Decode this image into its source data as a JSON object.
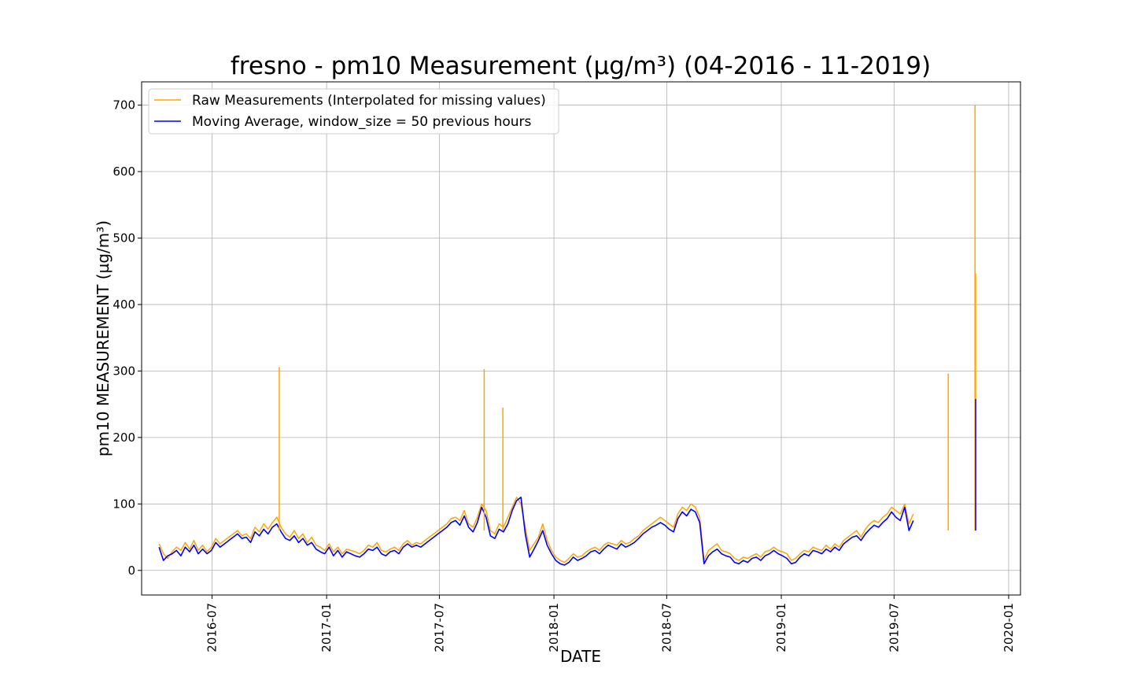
{
  "chart_data": {
    "type": "line",
    "title": "fresno - pm10 Measurement (µg/m³) (04-2016 - 11-2019)",
    "xlabel": "DATE",
    "ylabel": "pm10 MEASUREMENT (µg/m³)",
    "x_start": "2016-04-07",
    "x_end": "2019-11-22",
    "xlim": [
      "2016-03-10",
      "2020-01-20"
    ],
    "ylim": [
      -37,
      735
    ],
    "grid": true,
    "legend_position": "top-left",
    "x_ticks": [
      {
        "date": "2016-07-01",
        "label": "2016-07"
      },
      {
        "date": "2017-01-01",
        "label": "2017-01"
      },
      {
        "date": "2017-07-01",
        "label": "2017-07"
      },
      {
        "date": "2018-01-01",
        "label": "2018-01"
      },
      {
        "date": "2018-07-01",
        "label": "2018-07"
      },
      {
        "date": "2019-01-01",
        "label": "2019-01"
      },
      {
        "date": "2019-07-01",
        "label": "2019-07"
      },
      {
        "date": "2020-01-01",
        "label": "2020-01"
      }
    ],
    "y_ticks": [
      0,
      100,
      200,
      300,
      400,
      500,
      600,
      700
    ],
    "series": [
      {
        "name": "Raw Measurements (Interpolated for missing values)",
        "color": "#ffa500",
        "step_days": 7,
        "values": [
          40,
          25,
          18,
          28,
          35,
          30,
          42,
          32,
          45,
          30,
          38,
          28,
          35,
          48,
          40,
          45,
          50,
          55,
          60,
          52,
          55,
          48,
          65,
          58,
          70,
          62,
          72,
          80,
          65,
          55,
          50,
          60,
          48,
          55,
          42,
          50,
          38,
          35,
          30,
          40,
          28,
          35,
          25,
          32,
          30,
          28,
          25,
          30,
          38,
          35,
          42,
          30,
          28,
          32,
          35,
          30,
          40,
          45,
          38,
          42,
          40,
          45,
          50,
          55,
          60,
          65,
          70,
          78,
          80,
          75,
          90,
          70,
          65,
          80,
          100,
          90,
          60,
          55,
          70,
          65,
          80,
          95,
          110,
          100,
          65,
          30,
          40,
          50,
          70,
          45,
          30,
          20,
          15,
          12,
          18,
          25,
          20,
          22,
          28,
          32,
          35,
          30,
          38,
          42,
          40,
          38,
          45,
          40,
          42,
          48,
          52,
          60,
          65,
          70,
          75,
          80,
          75,
          70,
          65,
          85,
          95,
          90,
          100,
          95,
          80,
          15,
          30,
          35,
          40,
          30,
          28,
          25,
          18,
          15,
          20,
          18,
          22,
          25,
          20,
          28,
          30,
          35,
          30,
          28,
          25,
          15,
          18,
          25,
          30,
          28,
          35,
          32,
          30,
          38,
          32,
          40,
          35,
          45,
          50,
          55,
          60,
          50,
          62,
          70,
          75,
          72,
          80,
          85,
          95,
          90,
          85,
          100,
          70,
          85
        ]
      },
      {
        "name": "Moving Average, window_size = 50 previous hours",
        "color": "#0000ff",
        "step_days": 7,
        "values": [
          35,
          15,
          22,
          25,
          30,
          22,
          35,
          28,
          38,
          25,
          32,
          25,
          30,
          42,
          35,
          40,
          45,
          50,
          55,
          48,
          50,
          42,
          58,
          52,
          62,
          55,
          65,
          70,
          58,
          48,
          45,
          52,
          42,
          48,
          38,
          42,
          32,
          28,
          25,
          35,
          22,
          30,
          20,
          28,
          25,
          22,
          20,
          25,
          32,
          30,
          35,
          25,
          22,
          28,
          30,
          25,
          35,
          40,
          35,
          38,
          35,
          40,
          45,
          50,
          55,
          60,
          65,
          72,
          75,
          68,
          82,
          65,
          58,
          72,
          95,
          80,
          52,
          48,
          62,
          58,
          70,
          90,
          105,
          110,
          55,
          20,
          32,
          45,
          60,
          38,
          25,
          15,
          10,
          8,
          12,
          20,
          15,
          18,
          22,
          28,
          30,
          25,
          32,
          38,
          35,
          32,
          40,
          35,
          38,
          42,
          48,
          55,
          60,
          65,
          68,
          72,
          68,
          62,
          58,
          78,
          88,
          82,
          92,
          88,
          72,
          10,
          22,
          28,
          32,
          25,
          22,
          20,
          12,
          10,
          15,
          12,
          18,
          20,
          15,
          22,
          25,
          30,
          25,
          22,
          18,
          10,
          12,
          20,
          25,
          22,
          30,
          28,
          25,
          32,
          28,
          35,
          30,
          40,
          45,
          50,
          52,
          45,
          55,
          62,
          68,
          65,
          72,
          78,
          88,
          80,
          75,
          95,
          60,
          75
        ]
      }
    ],
    "notable_peaks": [
      {
        "date": "2016-10-17",
        "value": 306,
        "series": 0
      },
      {
        "date": "2017-09-11",
        "value": 303,
        "series": 0
      },
      {
        "date": "2017-10-11",
        "value": 245,
        "series": 0
      },
      {
        "date": "2019-09-26",
        "value": 296,
        "series": 0
      },
      {
        "date": "2019-11-08",
        "value": 700,
        "series": 0
      },
      {
        "date": "2019-11-09",
        "value": 447,
        "series": 0
      },
      {
        "date": "2019-11-09",
        "value": 258,
        "series": 1
      }
    ]
  }
}
